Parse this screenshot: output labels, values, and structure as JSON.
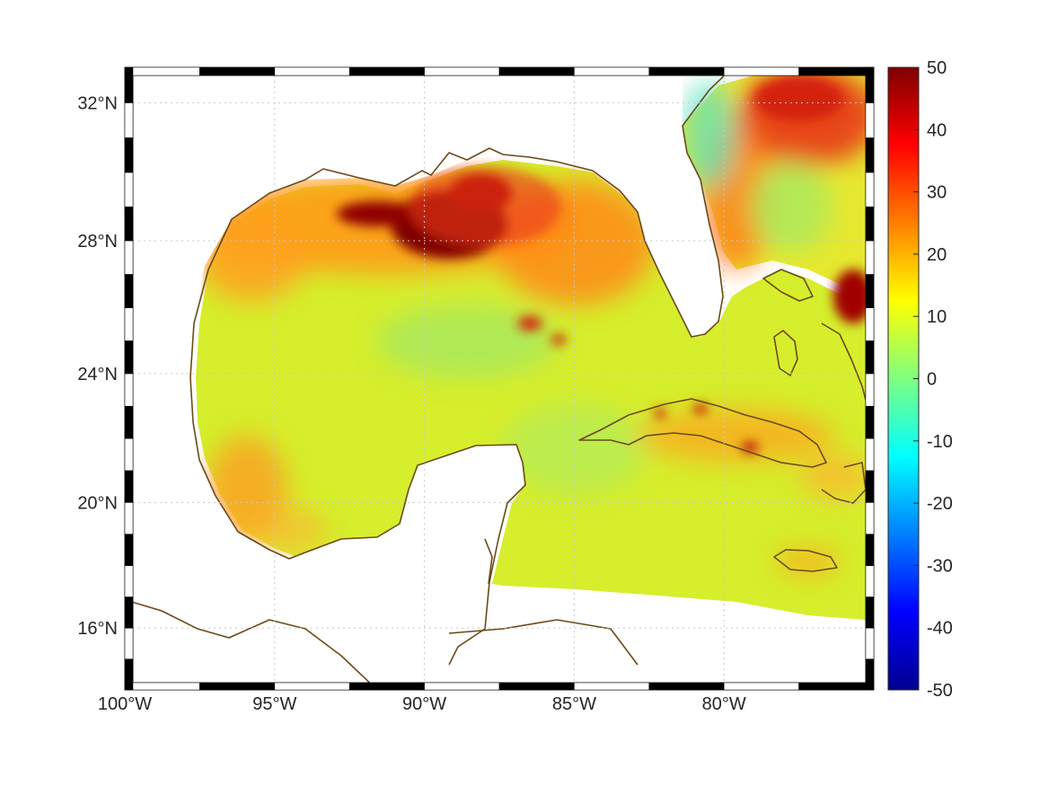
{
  "map": {
    "projection": "Mercator",
    "lon_range": [
      -100,
      -75
    ],
    "lat_range": [
      14,
      33
    ],
    "grid": true,
    "colormap": "jet",
    "coastline_color": "#6b4a17",
    "lon_ticks": [
      {
        "value": -100,
        "label": "100°W"
      },
      {
        "value": -95,
        "label": "95°W"
      },
      {
        "value": -90,
        "label": "90°W"
      },
      {
        "value": -85,
        "label": "85°W"
      },
      {
        "value": -80,
        "label": "80°W"
      }
    ],
    "lat_ticks": [
      {
        "value": 16,
        "label": "16°N"
      },
      {
        "value": 20,
        "label": "20°N"
      },
      {
        "value": 24,
        "label": "24°N"
      },
      {
        "value": 28,
        "label": "28°N"
      },
      {
        "value": 32,
        "label": "32°N"
      }
    ]
  },
  "colorbar": {
    "range": [
      -50,
      50
    ],
    "ticks": [
      {
        "value": 50,
        "label": "50"
      },
      {
        "value": 40,
        "label": "40"
      },
      {
        "value": 30,
        "label": "30"
      },
      {
        "value": 20,
        "label": "20"
      },
      {
        "value": 10,
        "label": "10"
      },
      {
        "value": 0,
        "label": "0"
      },
      {
        "value": -10,
        "label": "-10"
      },
      {
        "value": -20,
        "label": "-20"
      },
      {
        "value": -30,
        "label": "-30"
      },
      {
        "value": -40,
        "label": "-40"
      },
      {
        "value": -50,
        "label": "-50"
      }
    ],
    "colors": [
      "#00008f",
      "#0000ff",
      "#00ffff",
      "#ffff00",
      "#ff0000",
      "#800000"
    ]
  },
  "field_colors": {
    "base": "#d6ee2c",
    "high_orange": "#ff9a1a",
    "very_high": "#e8361a",
    "peak": "#7f0000",
    "low_green": "#8fe678",
    "low_cyan": "#5fe0c0"
  }
}
